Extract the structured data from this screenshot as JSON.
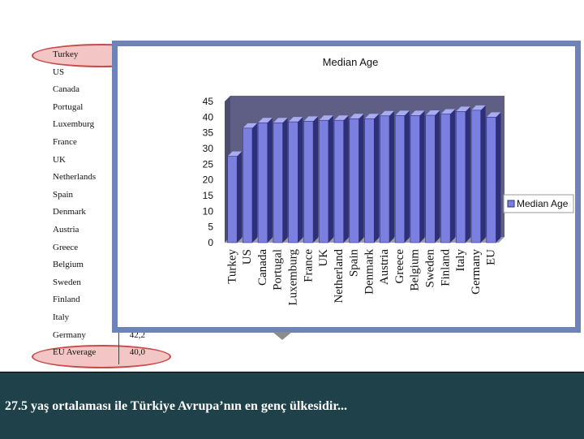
{
  "table": {
    "rows": [
      {
        "country": "Turkey",
        "age": "27,5"
      },
      {
        "country": "US",
        "age": "36,5"
      },
      {
        "country": "Canada",
        "age": "38,2"
      },
      {
        "country": "Portugal",
        "age": "38,2"
      },
      {
        "country": "Luxemburg",
        "age": "38,5"
      },
      {
        "country": "France",
        "age": "38,7"
      },
      {
        "country": "UK",
        "age": "39"
      },
      {
        "country": "Netherlands",
        "age": "39"
      },
      {
        "country": "Spain",
        "age": "39,5"
      },
      {
        "country": "Denmark",
        "age": "39,5"
      },
      {
        "country": "Austria",
        "age": "40,4"
      },
      {
        "country": "Greece",
        "age": "40,5"
      },
      {
        "country": "Belgium",
        "age": "40,5"
      },
      {
        "country": "Sweden",
        "age": "40,6"
      },
      {
        "country": "Finland",
        "age": "41"
      },
      {
        "country": "Italy",
        "age": "41,8"
      },
      {
        "country": "Germany",
        "age": "42,2"
      },
      {
        "country": "EU Average",
        "age": "40,0"
      }
    ]
  },
  "chart_data": {
    "type": "bar",
    "title": "Median Age",
    "categories": [
      "Turkey",
      "US",
      "Canada",
      "Portugal",
      "Luxemburg",
      "France",
      "UK",
      "Netherland",
      "Spain",
      "Denmark",
      "Austria",
      "Greece",
      "Belgium",
      "Sweden",
      "Finland",
      "Italy",
      "Germany",
      "EU"
    ],
    "series": [
      {
        "name": "Median Age",
        "values": [
          27.5,
          36.5,
          38.2,
          38.2,
          38.5,
          38.7,
          39,
          39,
          39.5,
          39.5,
          40.4,
          40.5,
          40.5,
          40.6,
          41,
          41.8,
          42.2,
          40.0
        ]
      }
    ],
    "yticks": [
      "0",
      "5",
      "10",
      "15",
      "20",
      "25",
      "30",
      "35",
      "40",
      "45"
    ],
    "ylim": [
      0,
      45
    ],
    "legend_position": "right",
    "bar_color": "#7b7fe0",
    "bar_shadow_color": "#2d2f78",
    "wall_color": "#5f5f86"
  },
  "caption": "27.5 yaş ortalaması ile Türkiye Avrupa’nın en genç ülkesidir...",
  "colors": {
    "caption_bg": "#1f4149",
    "frame": "#6e84b8",
    "highlight": "#eb9696"
  }
}
